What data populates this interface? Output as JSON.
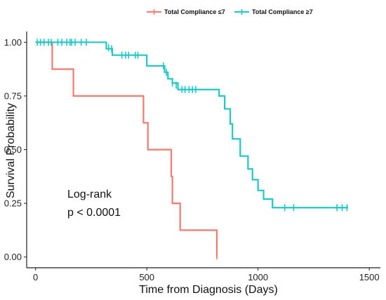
{
  "chart_data": {
    "type": "line",
    "step": true,
    "xlabel": "Time from Diagnosis (Days)",
    "ylabel": "Survival Probability",
    "xlim": [
      -40,
      1550
    ],
    "ylim": [
      -0.05,
      1.05
    ],
    "xticks": [
      0,
      500,
      1000,
      1500
    ],
    "yticks": [
      0.0,
      0.25,
      0.5,
      0.75,
      1.0
    ],
    "xtick_labels": [
      "0",
      "500",
      "1000",
      "1500"
    ],
    "ytick_labels": [
      "0.00",
      "0.25",
      "0.50",
      "0.75",
      "1.00"
    ],
    "grid": false,
    "legend_position": "top",
    "annotations": [
      "Log-rank",
      "p < 0.0001"
    ],
    "series": [
      {
        "name": "Total Compliance ≤7",
        "color": "#f07b70",
        "steps": [
          [
            0,
            1.0
          ],
          [
            75,
            0.875
          ],
          [
            170,
            0.75
          ],
          [
            485,
            0.625
          ],
          [
            505,
            0.5
          ],
          [
            610,
            0.375
          ],
          [
            615,
            0.25
          ],
          [
            650,
            0.125
          ],
          [
            815,
            0.0
          ]
        ],
        "end_x": 815,
        "censored": [
          [
            815,
            0.005
          ]
        ]
      },
      {
        "name": "Total Compliance ≥7",
        "color": "#1ec8c6",
        "steps": [
          [
            0,
            1.0
          ],
          [
            318,
            0.97
          ],
          [
            345,
            0.94
          ],
          [
            500,
            0.89
          ],
          [
            580,
            0.86
          ],
          [
            595,
            0.83
          ],
          [
            615,
            0.81
          ],
          [
            640,
            0.78
          ],
          [
            825,
            0.75
          ],
          [
            850,
            0.69
          ],
          [
            875,
            0.62
          ],
          [
            885,
            0.55
          ],
          [
            920,
            0.47
          ],
          [
            955,
            0.41
          ],
          [
            975,
            0.36
          ],
          [
            1000,
            0.31
          ],
          [
            1025,
            0.27
          ],
          [
            1065,
            0.23
          ]
        ],
        "end_x": 1405,
        "censored": [
          [
            8,
            1.0
          ],
          [
            22,
            1.0
          ],
          [
            38,
            1.0
          ],
          [
            58,
            1.0
          ],
          [
            70,
            1.0
          ],
          [
            100,
            1.0
          ],
          [
            118,
            1.0
          ],
          [
            140,
            1.0
          ],
          [
            155,
            1.0
          ],
          [
            162,
            1.0
          ],
          [
            178,
            1.0
          ],
          [
            205,
            1.0
          ],
          [
            228,
            1.0
          ],
          [
            318,
            0.985
          ],
          [
            328,
            0.975
          ],
          [
            342,
            0.97
          ],
          [
            388,
            0.94
          ],
          [
            405,
            0.94
          ],
          [
            418,
            0.94
          ],
          [
            448,
            0.94
          ],
          [
            460,
            0.94
          ],
          [
            575,
            0.89
          ],
          [
            588,
            0.86
          ],
          [
            615,
            0.81
          ],
          [
            632,
            0.8
          ],
          [
            658,
            0.78
          ],
          [
            672,
            0.78
          ],
          [
            690,
            0.78
          ],
          [
            705,
            0.78
          ],
          [
            720,
            0.78
          ],
          [
            1120,
            0.23
          ],
          [
            1160,
            0.23
          ],
          [
            1355,
            0.23
          ],
          [
            1378,
            0.23
          ],
          [
            1400,
            0.23
          ]
        ]
      }
    ]
  }
}
